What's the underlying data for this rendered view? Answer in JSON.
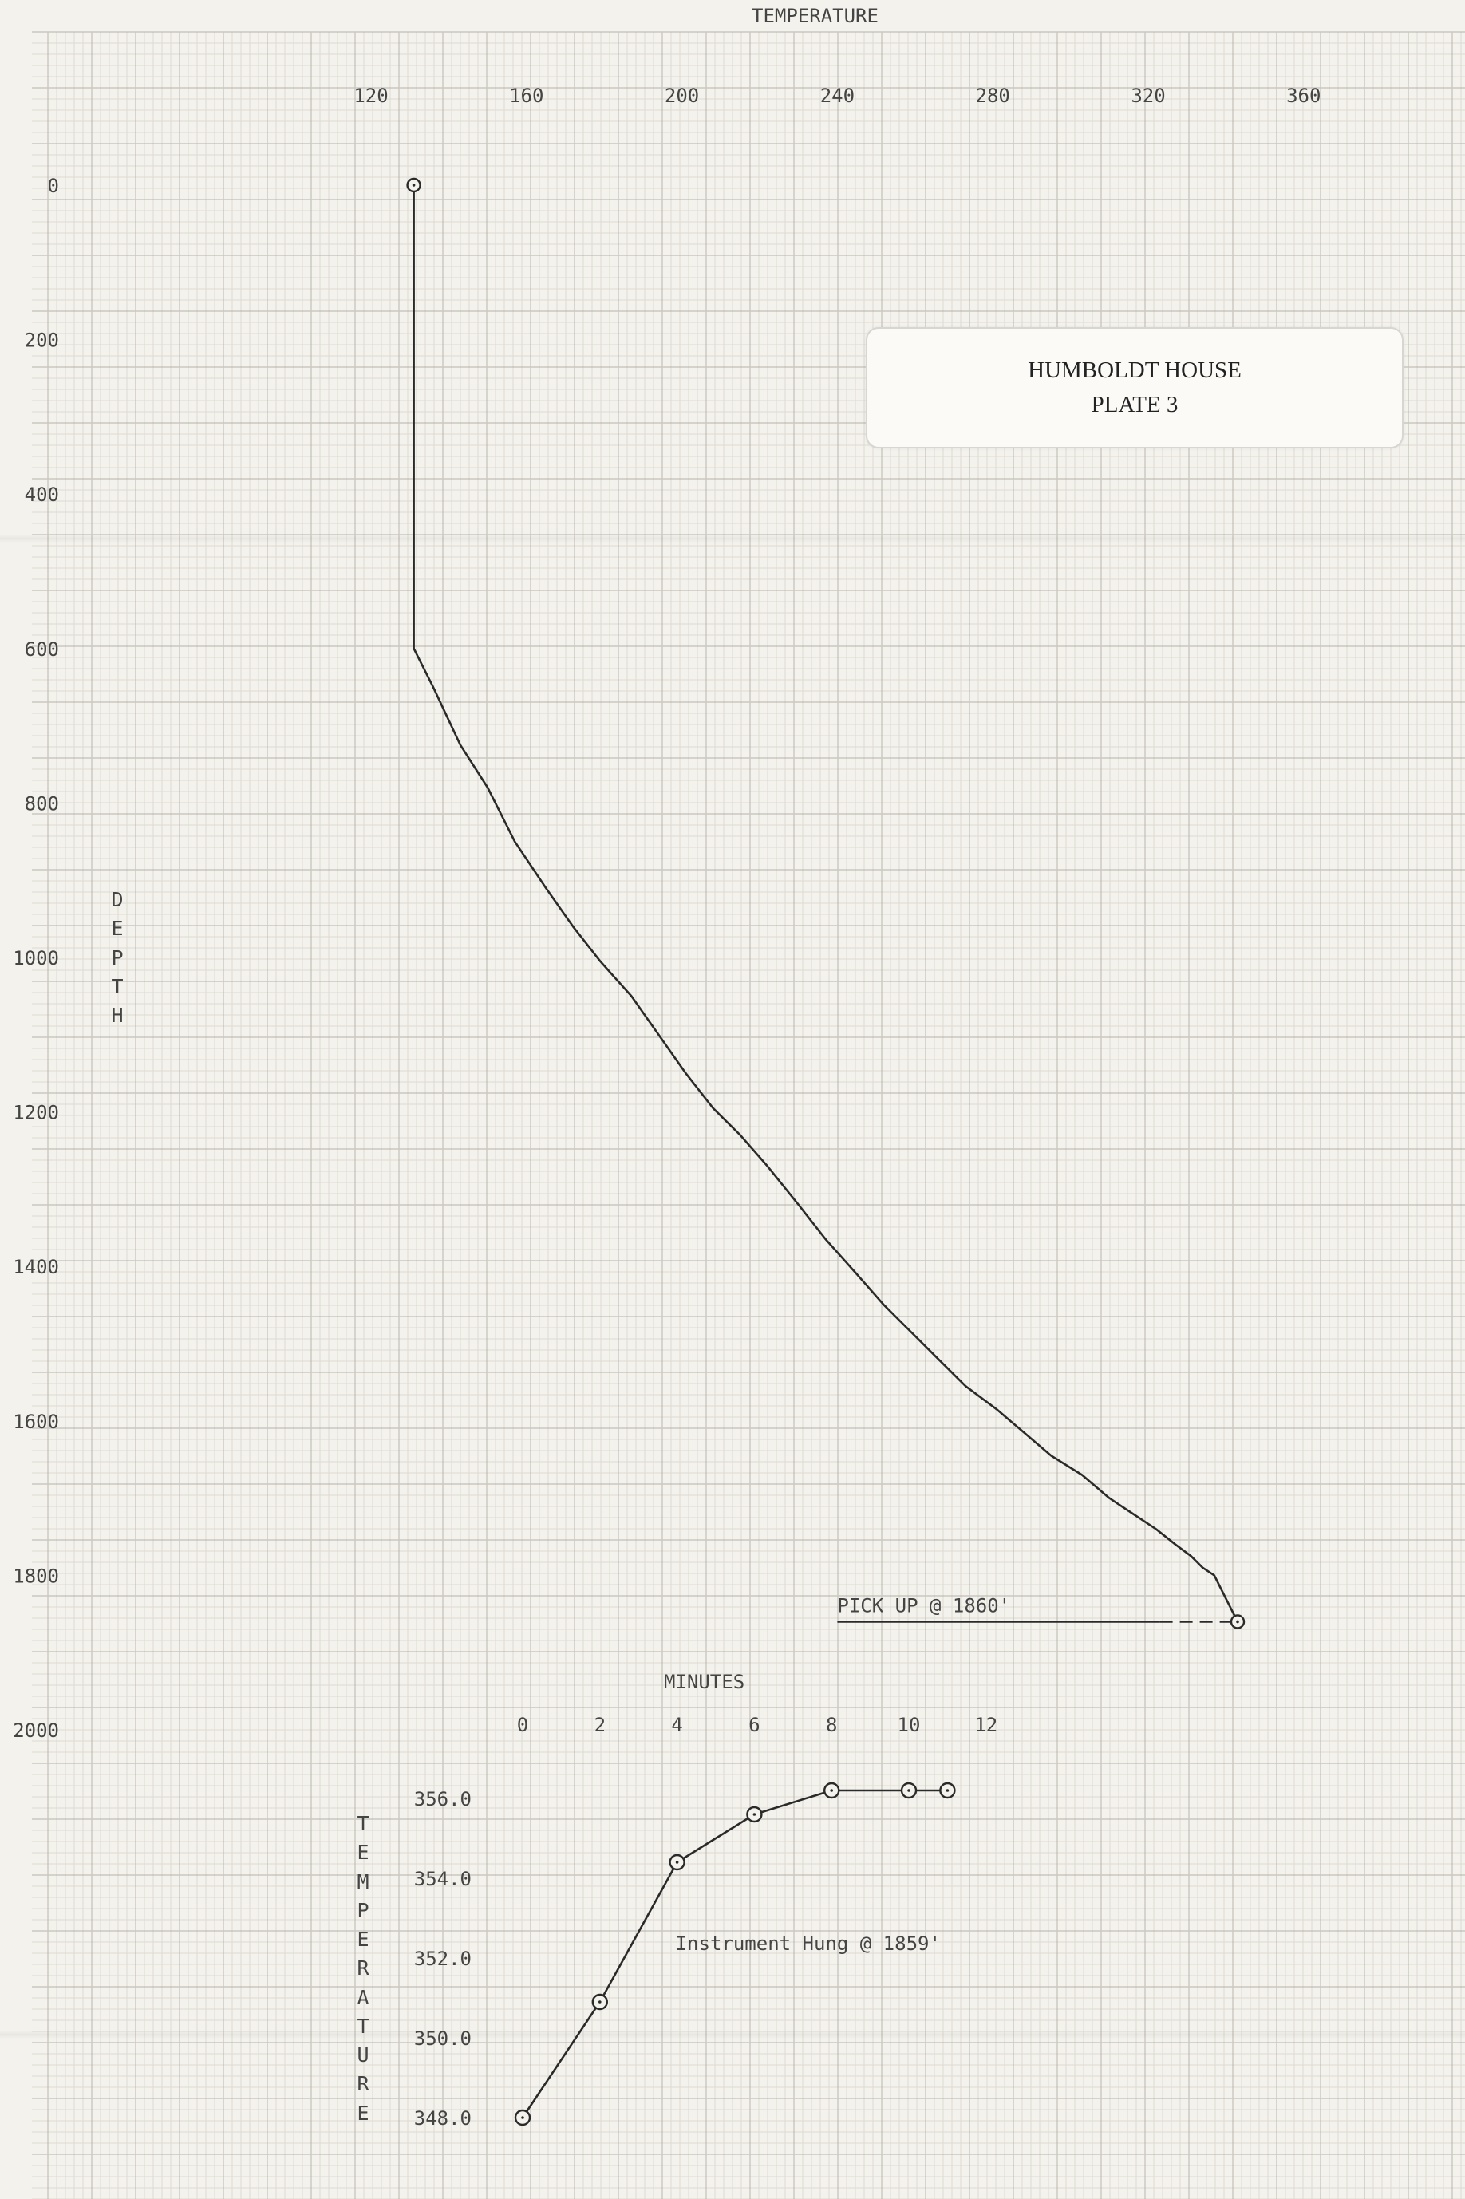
{
  "plate": {
    "line1": "HUMBOLDT HOUSE",
    "line2": "PLATE 3"
  },
  "chart_data": [
    {
      "type": "line",
      "title": "",
      "xlabel": "TEMPERATURE",
      "ylabel": "DEPTH",
      "x_ticks": [
        120,
        160,
        200,
        240,
        280,
        320,
        360
      ],
      "y_ticks": [
        0,
        200,
        400,
        600,
        800,
        1000,
        1200,
        1400,
        1600,
        1800,
        2000
      ],
      "y_tick_labels": [
        "0",
        "200",
        "400",
        "600",
        "800",
        "1000",
        "1200",
        "1400",
        "1600",
        "1800",
        "2000"
      ],
      "xlim": [
        97,
        396
      ],
      "ylim": [
        2000,
        0
      ],
      "series": [
        {
          "x": [
            131,
            131,
            131,
            131,
            131,
            131,
            131,
            136,
            143,
            150,
            157,
            165,
            172,
            179,
            187,
            194,
            201,
            208,
            215,
            222,
            230,
            237,
            245,
            252,
            259,
            266,
            273,
            281,
            288,
            295,
            303,
            310,
            316,
            322,
            327,
            331,
            334,
            337,
            339,
            343
          ],
          "y": [
            0,
            100,
            200,
            300,
            400,
            500,
            600,
            650,
            725,
            780,
            850,
            910,
            960,
            1005,
            1050,
            1100,
            1150,
            1195,
            1230,
            1270,
            1320,
            1365,
            1410,
            1450,
            1485,
            1520,
            1555,
            1585,
            1615,
            1645,
            1670,
            1700,
            1720,
            1740,
            1760,
            1775,
            1790,
            1800,
            1820,
            1860
          ],
          "markers_at": [
            0,
            39
          ]
        }
      ],
      "annotations": [
        {
          "text": "PICK UP @ 1860'",
          "depth": 1860,
          "temp_start": 240,
          "temp_end": 343
        }
      ]
    },
    {
      "type": "line",
      "title": "",
      "xlabel": "MINUTES",
      "ylabel": "TEMPERATURE",
      "x_ticks": [
        0,
        2,
        4,
        6,
        8,
        10,
        12
      ],
      "y_ticks": [
        348.0,
        350.0,
        352.0,
        354.0,
        356.0
      ],
      "y_tick_labels": [
        "348.0",
        "350.0",
        "352.0",
        "354.0",
        "356.0"
      ],
      "xlim": [
        0,
        12
      ],
      "ylim": [
        348.0,
        356.0
      ],
      "series": [
        {
          "x": [
            0,
            2,
            4,
            6,
            8,
            10,
            11
          ],
          "y": [
            348.0,
            350.9,
            354.4,
            355.6,
            356.2,
            356.2,
            356.2
          ]
        }
      ],
      "annotations": [
        {
          "text": "Instrument Hung @ 1859'",
          "x": 4,
          "y": 352.2
        }
      ]
    }
  ]
}
